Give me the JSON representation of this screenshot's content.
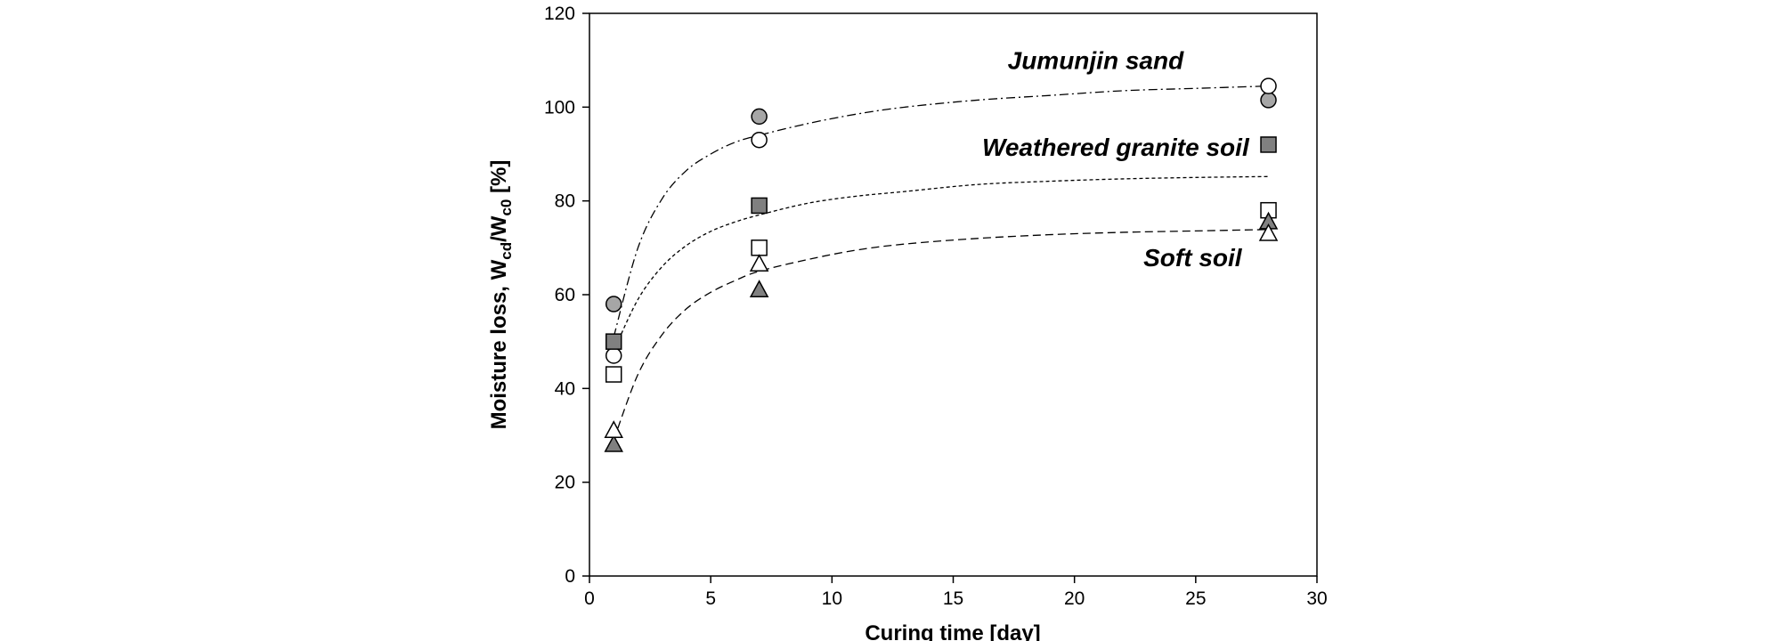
{
  "chart_data": {
    "type": "scatter",
    "xlabel": "Curing time [day]",
    "ylabel": {
      "main": "Moisture loss, W",
      "sub1": "cd",
      "mid": "/W",
      "sub2": "c0",
      "end": " [%]"
    },
    "xlim": [
      0,
      30
    ],
    "ylim": [
      0,
      120
    ],
    "xticks": [
      0,
      5,
      10,
      15,
      20,
      25,
      30
    ],
    "yticks": [
      0,
      20,
      40,
      60,
      80,
      100,
      120
    ],
    "grid": false,
    "annotations": [
      {
        "text": "Jumunjin sand",
        "x": 24.5,
        "y": 110
      },
      {
        "text": "Weathered granite soil",
        "x": 27.2,
        "y": 91.5
      },
      {
        "text": "Soft soil",
        "x": 26.9,
        "y": 68
      }
    ],
    "series": [
      {
        "marker": "circle",
        "fill": "#a6a6a6",
        "x": [
          1,
          7,
          28
        ],
        "y": [
          58,
          98,
          101.5
        ]
      },
      {
        "marker": "circle",
        "fill": "#ffffff",
        "x": [
          1,
          7,
          28
        ],
        "y": [
          47,
          93,
          104.5
        ]
      },
      {
        "marker": "square",
        "fill": "#808080",
        "x": [
          1,
          7,
          28
        ],
        "y": [
          50,
          79,
          92
        ]
      },
      {
        "marker": "square",
        "fill": "#ffffff",
        "x": [
          1,
          7,
          28
        ],
        "y": [
          43,
          70,
          78
        ]
      },
      {
        "marker": "triangle",
        "fill": "#808080",
        "x": [
          1,
          7,
          28
        ],
        "y": [
          28,
          61,
          75.5
        ]
      },
      {
        "marker": "triangle",
        "fill": "#ffffff",
        "x": [
          1,
          7,
          28
        ],
        "y": [
          31,
          66.5,
          73
        ]
      }
    ],
    "trendlines": [
      {
        "style": "dash-dot",
        "x": [
          1,
          2,
          3,
          4,
          5,
          6,
          7,
          9,
          11,
          13,
          16,
          19,
          22,
          25,
          28
        ],
        "y": [
          51,
          70,
          80.5,
          86.5,
          90,
          92.5,
          94,
          96.5,
          98.5,
          100,
          101.5,
          102.5,
          103.5,
          104,
          104.5
        ]
      },
      {
        "style": "dotted",
        "x": [
          1,
          2,
          3,
          4,
          5,
          6,
          7,
          9,
          11,
          13,
          16,
          19,
          22,
          25,
          28
        ],
        "y": [
          48,
          59,
          66,
          70.5,
          73.5,
          75.5,
          77,
          79.5,
          81,
          82,
          83.5,
          84.2,
          84.7,
          85,
          85.2
        ]
      },
      {
        "style": "dashed",
        "x": [
          1,
          2,
          3,
          4,
          5,
          6,
          7,
          9,
          11,
          13,
          16,
          19,
          22,
          25,
          28
        ],
        "y": [
          29,
          43,
          51.5,
          57,
          60.5,
          63,
          65,
          67.5,
          69.5,
          70.8,
          72,
          72.8,
          73.3,
          73.6,
          73.9
        ]
      }
    ]
  }
}
